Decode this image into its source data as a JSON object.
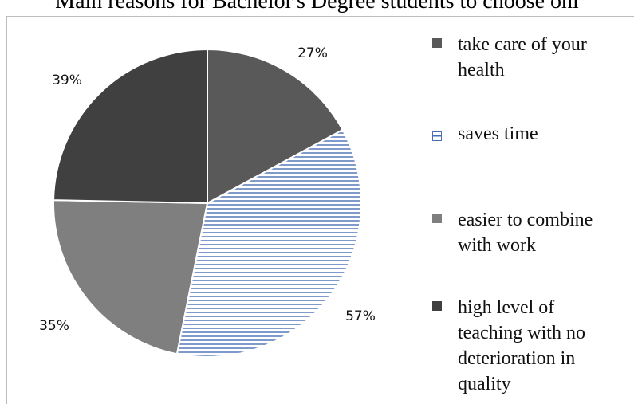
{
  "chart_data": {
    "type": "pie",
    "title": "Main reasons for Bachelor's Degree students to choose onl",
    "slices": [
      {
        "label": "take care of your health",
        "value": 27,
        "value_label": "27%",
        "color": "#595959",
        "pattern": "solid"
      },
      {
        "label": "saves time",
        "value": 57,
        "value_label": "57%",
        "color": "#4a6fb5",
        "pattern": "horizontal-stripes"
      },
      {
        "label": "easier to combine with work",
        "value": 35,
        "value_label": "35%",
        "color": "#7f7f7f",
        "pattern": "solid"
      },
      {
        "label": "high level of teaching with no deterioration in quality",
        "value": 39,
        "value_label": "39%",
        "color": "#404040",
        "pattern": "solid"
      }
    ],
    "start_angle_deg": 0,
    "direction": "clockwise",
    "legend_position": "right"
  }
}
